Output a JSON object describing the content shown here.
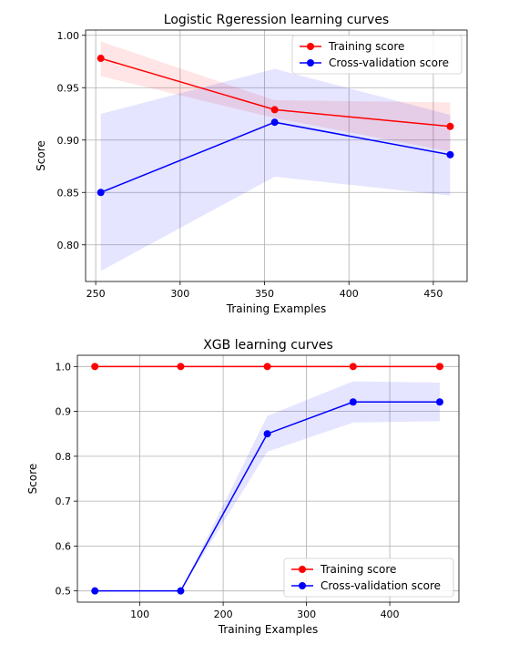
{
  "chart_data": [
    {
      "type": "line",
      "title": "Logistic Rgeression learning curves",
      "xlabel": "Training Examples",
      "ylabel": "Score",
      "xlim": [
        244,
        470
      ],
      "ylim": [
        0.765,
        1.005
      ],
      "xticks": [
        250,
        300,
        350,
        400,
        450
      ],
      "yticks": [
        0.8,
        0.85,
        0.9,
        0.95,
        1.0
      ],
      "ytick_labels": [
        "0.80",
        "0.85",
        "0.90",
        "0.95",
        "1.00"
      ],
      "grid": true,
      "legend": "top-right",
      "x": [
        253,
        356,
        460
      ],
      "series": [
        {
          "name": "Training score",
          "color": "#ff0000",
          "values": [
            0.978,
            0.929,
            0.913
          ],
          "band_lower": [
            0.961,
            0.921,
            0.889
          ],
          "band_upper": [
            0.994,
            0.938,
            0.936
          ]
        },
        {
          "name": "Cross-validation score",
          "color": "#0000ff",
          "values": [
            0.85,
            0.917,
            0.886
          ],
          "band_lower": [
            0.775,
            0.865,
            0.847
          ],
          "band_upper": [
            0.925,
            0.968,
            0.924
          ]
        }
      ]
    },
    {
      "type": "line",
      "title": "XGB learning curves",
      "xlabel": "Training Examples",
      "ylabel": "Score",
      "xlim": [
        25,
        483
      ],
      "ylim": [
        0.475,
        1.025
      ],
      "xticks": [
        100,
        200,
        300,
        400
      ],
      "yticks": [
        0.5,
        0.6,
        0.7,
        0.8,
        0.9,
        1.0
      ],
      "ytick_labels": [
        "0.5",
        "0.6",
        "0.7",
        "0.8",
        "0.9",
        "1.0"
      ],
      "grid": true,
      "legend": "bottom-right",
      "x": [
        46,
        149,
        253,
        356,
        460
      ],
      "series": [
        {
          "name": "Training score",
          "color": "#ff0000",
          "values": [
            1.0,
            1.0,
            1.0,
            1.0,
            1.0
          ],
          "band_lower": [
            1.0,
            1.0,
            1.0,
            1.0,
            1.0
          ],
          "band_upper": [
            1.0,
            1.0,
            1.0,
            1.0,
            1.0
          ]
        },
        {
          "name": "Cross-validation score",
          "color": "#0000ff",
          "values": [
            0.5,
            0.5,
            0.85,
            0.921,
            0.921
          ],
          "band_lower": [
            0.5,
            0.5,
            0.81,
            0.875,
            0.878
          ],
          "band_upper": [
            0.5,
            0.5,
            0.89,
            0.967,
            0.964
          ]
        }
      ]
    }
  ]
}
